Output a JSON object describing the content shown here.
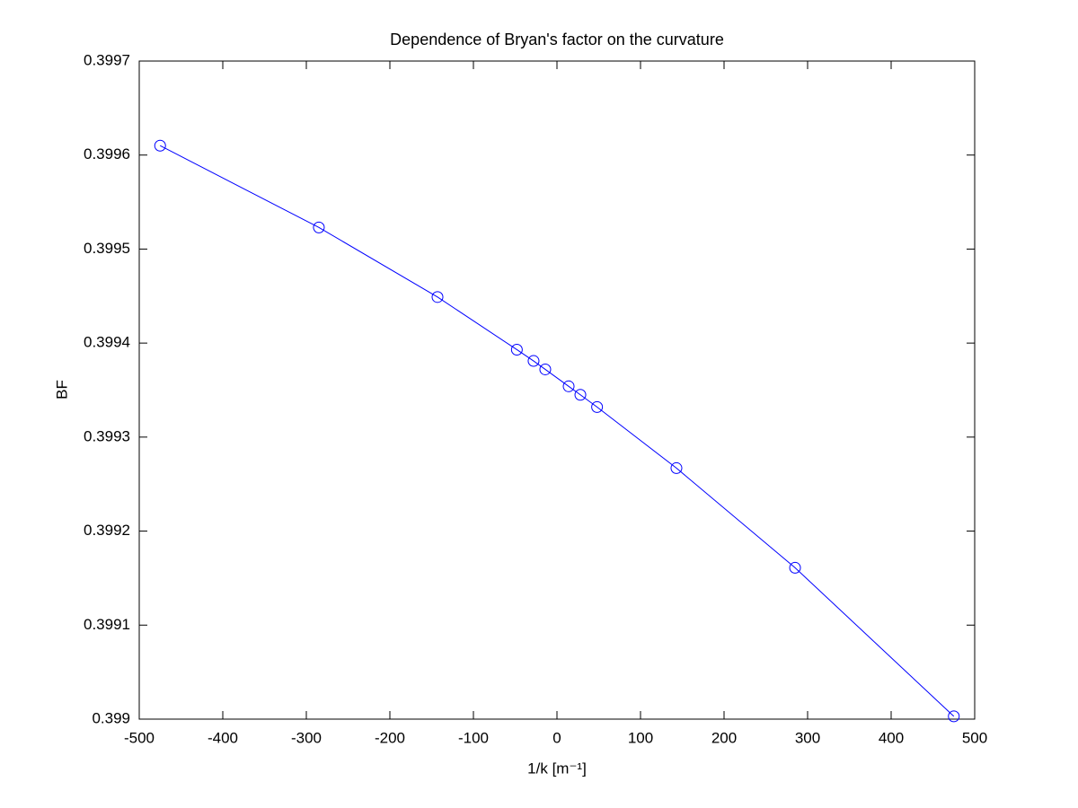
{
  "chart_data": {
    "type": "line",
    "title": "Dependence of Bryan's factor on the curvature",
    "x_label": "1/k [m⁻¹]",
    "y_label": "BF",
    "x": [
      -475,
      -285,
      -143,
      -48,
      -28,
      -14,
      14,
      28,
      48,
      143,
      285,
      475
    ],
    "series": [
      {
        "name": "BF",
        "color": "#0000ff",
        "marker": "circle",
        "values": [
          0.39961,
          0.399523,
          0.399449,
          0.399393,
          0.399381,
          0.399372,
          0.399354,
          0.399345,
          0.399332,
          0.399267,
          0.399161,
          0.399003
        ]
      }
    ],
    "xlim": [
      -500,
      500
    ],
    "xticks": [
      -500,
      -400,
      -300,
      -200,
      -100,
      0,
      100,
      200,
      300,
      400,
      500
    ],
    "ylim": [
      0.399,
      0.3997
    ],
    "yticks": [
      0.399,
      0.3991,
      0.3992,
      0.3993,
      0.3994,
      0.3995,
      0.3996,
      0.3997
    ],
    "grid": false
  }
}
